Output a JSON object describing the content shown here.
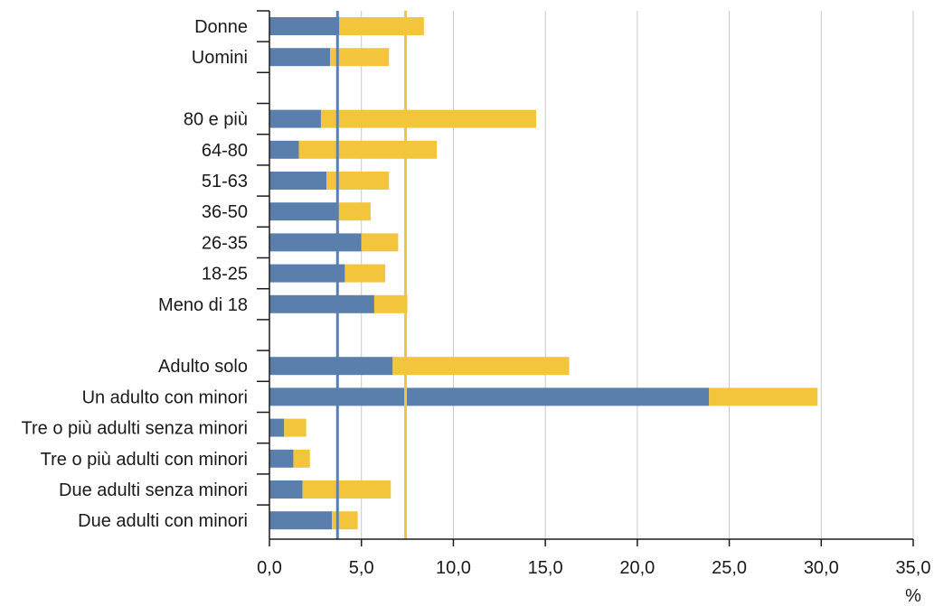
{
  "chart_data": {
    "type": "bar",
    "orientation": "horizontal",
    "stacked": true,
    "categories": [
      "Donne",
      "Uomini",
      "",
      "80 e più",
      "64-80",
      "51-63",
      "36-50",
      "26-35",
      "18-25",
      "Meno di 18",
      "",
      "Adulto solo",
      "Un adulto con minori",
      "Tre o più adulti senza minori",
      "Tre o più adulti con minori",
      "Due adulti senza minori",
      "Due adulti con minori"
    ],
    "series": [
      {
        "color": "#5b7fad",
        "values": [
          3.8,
          3.3,
          null,
          2.8,
          1.6,
          3.1,
          3.7,
          5.0,
          4.1,
          5.7,
          null,
          6.7,
          23.9,
          0.8,
          1.3,
          1.8,
          3.4
        ]
      },
      {
        "color": "#f2c53d",
        "values": [
          4.6,
          3.2,
          null,
          11.7,
          7.5,
          3.4,
          1.8,
          2.0,
          2.2,
          1.8,
          null,
          9.6,
          5.9,
          1.2,
          0.9,
          4.8,
          1.4
        ]
      }
    ],
    "reference_lines": [
      {
        "value": 3.7,
        "color": "#5b7fad"
      },
      {
        "value": 7.4,
        "color": "#f2c53d"
      }
    ],
    "xlim": [
      0,
      35
    ],
    "xticks": [
      "0,0",
      "5,0",
      "10,0",
      "15,0",
      "20,0",
      "25,0",
      "30,0",
      "35,0"
    ],
    "xlabel": "%",
    "grid": "vertical",
    "legend": "none"
  }
}
